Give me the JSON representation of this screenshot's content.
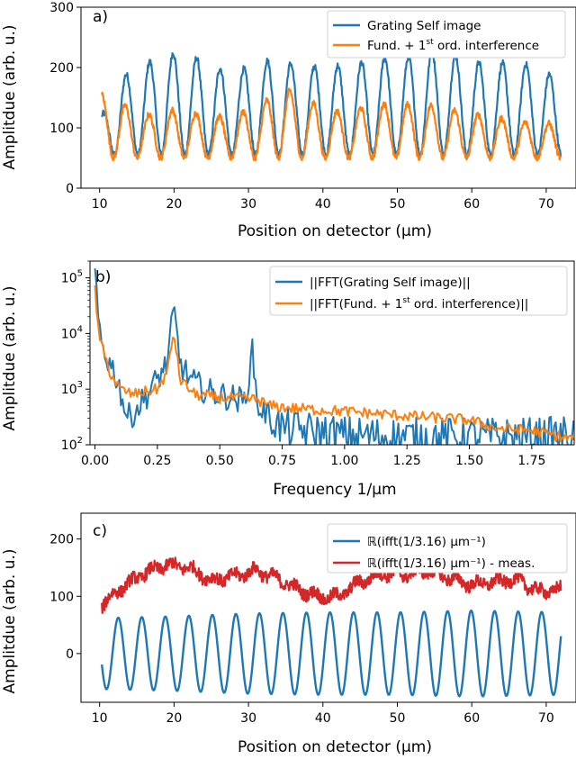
{
  "chart_data": [
    {
      "panel": "a)",
      "type": "line",
      "xlabel": "Position on detector (µm)",
      "ylabel": "Amplitdue (arb. u.)",
      "xlim": [
        7.5,
        74
      ],
      "ylim": [
        0,
        300
      ],
      "xticks": [
        10,
        20,
        30,
        40,
        50,
        60,
        70
      ],
      "yticks": [
        0,
        100,
        200,
        300
      ],
      "legend_position": "top-right",
      "series": [
        {
          "name": "Grating Self image",
          "color": "#1f77b4",
          "x_range": [
            10.3,
            72.0
          ],
          "oscillation": {
            "period_um": 3.16,
            "phase_um": 10.4,
            "min": 55,
            "max_envelope": [
              [
                10.3,
                120
              ],
              [
                13,
                185
              ],
              [
                16,
                205
              ],
              [
                19,
                225
              ],
              [
                22,
                222
              ],
              [
                25,
                205
              ],
              [
                28,
                190
              ],
              [
                31,
                208
              ],
              [
                34,
                215
              ],
              [
                37,
                200
              ],
              [
                41,
                205
              ],
              [
                44,
                200
              ],
              [
                47,
                222
              ],
              [
                50,
                210
              ],
              [
                53,
                225
              ],
              [
                56,
                228
              ],
              [
                59,
                215
              ],
              [
                62,
                205
              ],
              [
                66,
                210
              ],
              [
                69,
                200
              ],
              [
                72,
                178
              ]
            ]
          }
        },
        {
          "name": "Fund. + 1st ord. interference",
          "color": "#ff7f0e",
          "x_range": [
            10.3,
            72.0
          ],
          "oscillation": {
            "period_um": 3.16,
            "phase_um": 10.3,
            "min": 50,
            "max_envelope": [
              [
                10.3,
                155
              ],
              [
                13,
                140
              ],
              [
                16,
                120
              ],
              [
                19,
                130
              ],
              [
                22,
                128
              ],
              [
                25,
                118
              ],
              [
                28,
                120
              ],
              [
                31,
                135
              ],
              [
                35,
                165
              ],
              [
                38,
                145
              ],
              [
                41,
                128
              ],
              [
                44,
                128
              ],
              [
                47,
                142
              ],
              [
                50,
                138
              ],
              [
                53,
                140
              ],
              [
                56,
                135
              ],
              [
                59,
                125
              ],
              [
                62,
                120
              ],
              [
                66,
                112
              ],
              [
                69,
                105
              ],
              [
                72,
                110
              ]
            ]
          }
        }
      ]
    },
    {
      "panel": "b)",
      "type": "line",
      "yscale": "log",
      "xlabel": "Frequency 1/µm",
      "ylabel": "Amplitdue (arb. u.)",
      "xlim": [
        -0.02,
        1.92
      ],
      "ylim": [
        100,
        200000
      ],
      "xticks": [
        0.0,
        0.25,
        0.5,
        0.75,
        1.0,
        1.25,
        1.5,
        1.75
      ],
      "xtick_labels": [
        "0.00",
        "0.25",
        "0.50",
        "0.75",
        "1.00",
        "1.25",
        "1.50",
        "1.75"
      ],
      "yticks": [
        100,
        1000,
        10000,
        100000
      ],
      "legend_position": "top-right",
      "series": [
        {
          "name": "||FFT(Grating Self image)||",
          "color": "#1f77b4",
          "points": [
            [
              0.0,
              140000
            ],
            [
              0.01,
              20000
            ],
            [
              0.03,
              6000
            ],
            [
              0.05,
              3500
            ],
            [
              0.08,
              2000
            ],
            [
              0.1,
              1000
            ],
            [
              0.13,
              300
            ],
            [
              0.16,
              400
            ],
            [
              0.2,
              700
            ],
            [
              0.25,
              1500
            ],
            [
              0.29,
              3000
            ],
            [
              0.316,
              28000
            ],
            [
              0.34,
              3000
            ],
            [
              0.38,
              1500
            ],
            [
              0.45,
              900
            ],
            [
              0.55,
              700
            ],
            [
              0.6,
              600
            ],
            [
              0.632,
              5000
            ],
            [
              0.65,
              500
            ],
            [
              0.75,
              200
            ],
            [
              1.0,
              150
            ],
            [
              1.25,
              140
            ],
            [
              1.5,
              140
            ],
            [
              1.75,
              140
            ],
            [
              1.9,
              150
            ]
          ]
        },
        {
          "name": "||FFT(Fund. + 1st ord. interference)||",
          "color": "#ff7f0e",
          "points": [
            [
              0.0,
              60000
            ],
            [
              0.01,
              15000
            ],
            [
              0.03,
              5000
            ],
            [
              0.06,
              2000
            ],
            [
              0.1,
              1000
            ],
            [
              0.15,
              800
            ],
            [
              0.25,
              1000
            ],
            [
              0.29,
              2000
            ],
            [
              0.316,
              11000
            ],
            [
              0.34,
              1500
            ],
            [
              0.4,
              800
            ],
            [
              0.5,
              700
            ],
            [
              0.65,
              650
            ],
            [
              0.7,
              500
            ],
            [
              0.8,
              450
            ],
            [
              1.0,
              400
            ],
            [
              1.25,
              330
            ],
            [
              1.5,
              280
            ],
            [
              1.6,
              200
            ],
            [
              1.75,
              180
            ],
            [
              1.9,
              130
            ]
          ]
        }
      ]
    },
    {
      "panel": "c)",
      "type": "line",
      "xlabel": "Position on detector (µm)",
      "ylabel": "Amplitdue (arb. u.)",
      "xlim": [
        7.5,
        74
      ],
      "ylim": [
        -85,
        245
      ],
      "xticks": [
        10,
        20,
        30,
        40,
        50,
        60,
        70
      ],
      "yticks": [
        0,
        100,
        200
      ],
      "legend_position": "top-right",
      "series": [
        {
          "name": "ℝ(ifft(1/3.16) µm⁻¹)",
          "color": "#1f77b4",
          "x_range": [
            10.3,
            72.0
          ],
          "oscillation": {
            "period_um": 3.16,
            "phase_um": 10.3,
            "amplitude_envelope": [
              [
                10.3,
                62
              ],
              [
                20,
                65
              ],
              [
                30,
                70
              ],
              [
                40,
                72
              ],
              [
                50,
                72
              ],
              [
                60,
                75
              ],
              [
                72,
                72
              ]
            ],
            "offset": 0
          }
        },
        {
          "name": "ℝ(ifft(1/3.16) µm⁻¹) - meas.",
          "color": "#d62728",
          "points": [
            [
              10.3,
              85
            ],
            [
              13,
              115
            ],
            [
              16,
              140
            ],
            [
              19,
              155
            ],
            [
              22,
              150
            ],
            [
              25,
              128
            ],
            [
              28,
              135
            ],
            [
              31,
              145
            ],
            [
              34,
              130
            ],
            [
              37,
              110
            ],
            [
              40,
              98
            ],
            [
              42,
              100
            ],
            [
              45,
              125
            ],
            [
              48,
              140
            ],
            [
              51,
              138
            ],
            [
              54,
              145
            ],
            [
              57,
              132
            ],
            [
              60,
              120
            ],
            [
              63,
              125
            ],
            [
              66,
              130
            ],
            [
              69,
              108
            ],
            [
              72,
              112
            ]
          ]
        }
      ]
    }
  ]
}
